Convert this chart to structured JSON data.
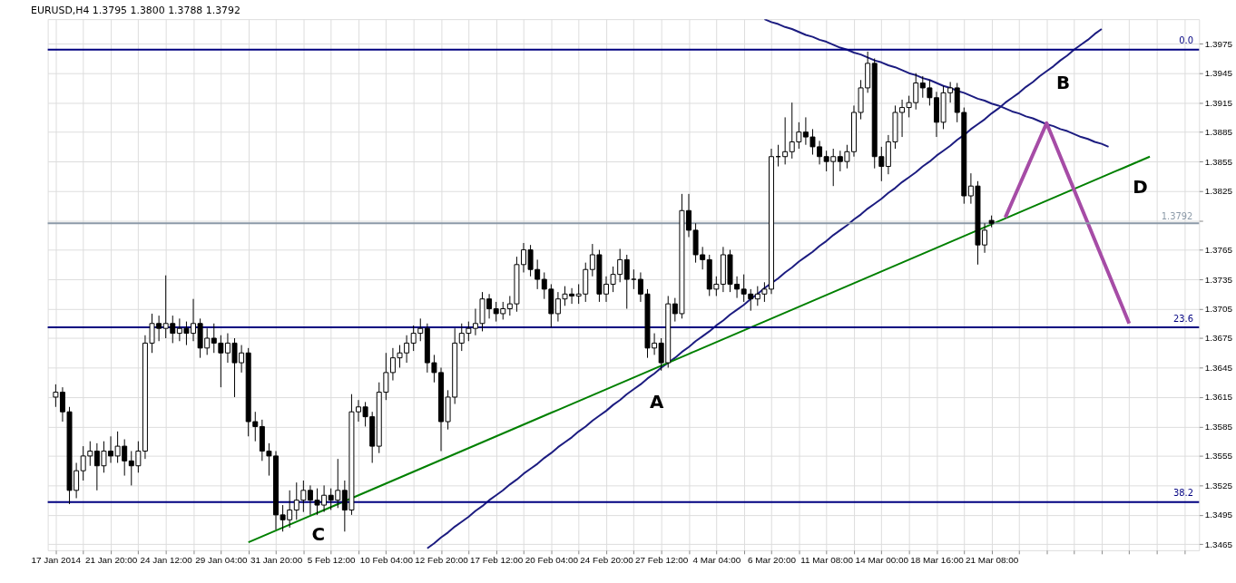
{
  "chart_data": {
    "type": "candlestick",
    "title": "EURUSD,H4  1.3795 1.3800 1.3788 1.3792",
    "categories": [
      "17 Jan 2014",
      null,
      null,
      null,
      null,
      null,
      null,
      null,
      "21 Jan 20:00",
      null,
      null,
      null,
      null,
      null,
      null,
      null,
      "24 Jan 12:00",
      null,
      null,
      null,
      null,
      null,
      null,
      null,
      "29 Jan 04:00",
      null,
      null,
      null,
      null,
      null,
      null,
      null,
      "31 Jan 20:00",
      null,
      null,
      null,
      null,
      null,
      null,
      null,
      "5 Feb 12:00",
      null,
      null,
      null,
      null,
      null,
      null,
      null,
      "10 Feb 04:00",
      null,
      null,
      null,
      null,
      null,
      null,
      null,
      "12 Feb 20:00",
      null,
      null,
      null,
      null,
      null,
      null,
      null,
      "17 Feb 12:00",
      null,
      null,
      null,
      null,
      null,
      null,
      null,
      "20 Feb 04:00",
      null,
      null,
      null,
      null,
      null,
      null,
      null,
      "24 Feb 20:00",
      null,
      null,
      null,
      null,
      null,
      null,
      null,
      "27 Feb 12:00",
      null,
      null,
      null,
      null,
      null,
      null,
      null,
      "4 Mar 04:00",
      null,
      null,
      null,
      null,
      null,
      null,
      null,
      "6 Mar 20:00",
      null,
      null,
      null,
      null,
      null,
      null,
      null,
      "11 Mar 08:00",
      null,
      null,
      null,
      null,
      null,
      null,
      null,
      "14 Mar 00:00",
      null,
      null,
      null,
      null,
      null,
      null,
      null,
      "18 Mar 16:00",
      null,
      null,
      null,
      null,
      null,
      null,
      null,
      "21 Mar 08:00",
      null,
      null,
      null,
      null,
      null,
      null,
      null,
      null,
      null,
      null,
      null,
      null,
      null,
      null,
      null,
      null,
      null,
      null,
      null,
      null,
      null,
      null,
      null,
      null,
      null,
      null,
      null,
      null,
      null
    ],
    "ylim": [
      1.3459,
      1.4
    ],
    "yticks": [
      1.3465,
      1.3495,
      1.3525,
      1.3555,
      1.3585,
      1.3615,
      1.3645,
      1.3675,
      1.3705,
      1.3735,
      1.3765,
      {
        "value": 1.3795,
        "label": null
      },
      1.3825,
      1.3855,
      1.3885,
      1.3915,
      1.3945,
      1.3975
    ],
    "grid": true,
    "series": [
      {
        "type": "line",
        "color": "#1c1c80",
        "values": [
          null,
          null,
          null,
          null,
          null,
          null,
          null,
          null,
          null,
          null,
          null,
          null,
          null,
          null,
          null,
          null,
          null,
          null,
          null,
          null,
          null,
          null,
          null,
          null,
          null,
          null,
          null,
          null,
          null,
          null,
          null,
          null,
          null,
          null,
          null,
          null,
          null,
          null,
          null,
          null,
          null,
          null,
          null,
          null,
          null,
          null,
          null,
          null,
          null,
          null,
          null,
          null,
          null,
          null,
          null,
          null,
          null,
          null,
          null,
          null,
          null,
          null,
          null,
          null,
          null,
          null,
          null,
          null,
          null,
          null,
          null,
          null,
          null,
          null,
          null,
          null,
          null,
          null,
          null,
          null,
          null,
          null,
          null,
          null,
          null,
          null,
          null,
          null,
          null,
          null,
          null,
          null,
          null,
          null,
          null,
          null,
          null,
          null,
          null,
          null,
          null,
          null,
          null,
          1.4,
          1.3997,
          1.3995,
          1.3992,
          1.399,
          1.3987,
          1.3984,
          1.3982,
          1.3979,
          1.3977,
          1.3974,
          1.3971,
          1.3969,
          1.3966,
          1.3964,
          1.3961,
          1.3958,
          1.3956,
          1.3953,
          1.3951,
          1.3948,
          1.3945,
          1.3943,
          1.394,
          1.3938,
          1.3935,
          1.3932,
          1.393,
          1.3927,
          1.3925,
          1.3922,
          1.3919,
          1.3917,
          1.3914,
          1.3912,
          1.3909,
          1.3906,
          1.3904,
          1.3901,
          1.3899,
          1.3896,
          1.3893,
          1.3891,
          1.3888,
          1.3886,
          1.3883,
          1.388,
          1.3878,
          1.3875,
          1.3873,
          1.387,
          null,
          null,
          null,
          null,
          null,
          null,
          null,
          null,
          null,
          null,
          null,
          null
        ]
      },
      {
        "type": "line",
        "color": "#1c1c80",
        "values": [
          null,
          null,
          null,
          null,
          null,
          null,
          null,
          null,
          null,
          null,
          null,
          null,
          null,
          null,
          null,
          null,
          null,
          null,
          null,
          null,
          null,
          null,
          null,
          null,
          null,
          null,
          null,
          null,
          null,
          null,
          null,
          null,
          null,
          null,
          null,
          null,
          null,
          null,
          null,
          null,
          null,
          null,
          null,
          null,
          null,
          null,
          null,
          null,
          null,
          null,
          null,
          null,
          null,
          null,
          1.3461,
          1.3466,
          1.3472,
          1.3477,
          1.3483,
          1.3488,
          1.3493,
          1.3499,
          1.3504,
          1.351,
          1.3515,
          1.352,
          1.3526,
          1.3531,
          1.3537,
          1.3542,
          1.3547,
          1.3553,
          1.3558,
          1.3564,
          1.3569,
          1.3574,
          1.358,
          1.3585,
          1.3591,
          1.3596,
          1.3601,
          1.3607,
          1.3612,
          1.3618,
          1.3623,
          1.3628,
          1.3634,
          1.3639,
          1.3645,
          1.365,
          1.3655,
          1.3661,
          1.3666,
          1.3672,
          1.3677,
          1.3682,
          1.3688,
          1.3693,
          1.3699,
          1.3704,
          1.3709,
          1.3715,
          1.372,
          1.3726,
          1.3731,
          1.3736,
          1.3742,
          1.3747,
          1.3753,
          1.3758,
          1.3763,
          1.3769,
          1.3774,
          1.378,
          1.3785,
          1.379,
          1.3796,
          1.3801,
          1.3807,
          1.3812,
          1.3817,
          1.3823,
          1.3828,
          1.3834,
          1.3839,
          1.3844,
          1.385,
          1.3855,
          1.3861,
          1.3866,
          1.3871,
          1.3877,
          1.3882,
          1.3888,
          1.3893,
          1.3898,
          1.3904,
          1.3909,
          1.3915,
          1.392,
          1.3925,
          1.3931,
          1.3936,
          1.3942,
          1.3947,
          1.3952,
          1.3958,
          1.3963,
          1.3969,
          1.3974,
          1.3979,
          1.3985,
          1.399,
          null,
          null,
          null,
          null,
          null,
          null,
          null,
          null,
          null,
          null,
          null,
          null,
          null
        ]
      },
      {
        "type": "line",
        "color": "#008000",
        "values": [
          null,
          null,
          null,
          null,
          null,
          null,
          null,
          null,
          null,
          null,
          null,
          null,
          null,
          null,
          null,
          null,
          null,
          null,
          null,
          null,
          null,
          null,
          null,
          null,
          null,
          null,
          null,
          null,
          1.3467,
          1.347,
          1.3473,
          1.3476,
          1.3479,
          1.3482,
          1.3485,
          1.3488,
          1.3491,
          1.3494,
          1.3497,
          1.35,
          1.3503,
          1.3506,
          1.3509,
          1.3512,
          1.3515,
          1.3518,
          1.3521,
          1.3524,
          1.3527,
          1.353,
          1.3533,
          1.3536,
          1.3539,
          1.3542,
          1.3545,
          1.3548,
          1.3551,
          1.3554,
          1.3557,
          1.356,
          1.3563,
          1.3566,
          1.3569,
          1.3572,
          1.3575,
          1.3578,
          1.3581,
          1.3584,
          1.3587,
          1.359,
          1.3593,
          1.3596,
          1.3599,
          1.3602,
          1.3605,
          1.3608,
          1.3611,
          1.3614,
          1.3617,
          1.362,
          1.3623,
          1.3626,
          1.3629,
          1.3632,
          1.3635,
          1.3638,
          1.3641,
          1.3644,
          1.3647,
          1.365,
          1.3653,
          1.3656,
          1.3659,
          1.3662,
          1.3665,
          1.3668,
          1.3671,
          1.3674,
          1.3677,
          1.368,
          1.3683,
          1.3686,
          1.3689,
          1.3692,
          1.3695,
          1.3698,
          1.3701,
          1.3704,
          1.3707,
          1.371,
          1.3713,
          1.3716,
          1.3719,
          1.3722,
          1.3725,
          1.3728,
          1.3731,
          1.3734,
          1.3737,
          1.374,
          1.3743,
          1.3746,
          1.3749,
          1.3752,
          1.3755,
          1.3758,
          1.3761,
          1.3764,
          1.3767,
          1.377,
          1.3773,
          1.3776,
          1.3779,
          1.3782,
          1.3785,
          1.3788,
          1.3791,
          1.3794,
          1.3797,
          1.38,
          1.3803,
          1.3806,
          1.3809,
          1.3812,
          1.3815,
          1.3818,
          1.3821,
          1.3824,
          1.3827,
          1.383,
          1.3833,
          1.3836,
          1.3839,
          1.3842,
          1.3845,
          1.3848,
          1.3851,
          1.3854,
          1.3857,
          1.386,
          null,
          null,
          null,
          null,
          null,
          null
        ]
      },
      {
        "type": "line",
        "color": "#a64ca6",
        "values": [
          null,
          null,
          null,
          null,
          null,
          null,
          null,
          null,
          null,
          null,
          null,
          null,
          null,
          null,
          null,
          null,
          null,
          null,
          null,
          null,
          null,
          null,
          null,
          null,
          null,
          null,
          null,
          null,
          null,
          null,
          null,
          null,
          null,
          null,
          null,
          null,
          null,
          null,
          null,
          null,
          null,
          null,
          null,
          null,
          null,
          null,
          null,
          null,
          null,
          null,
          null,
          null,
          null,
          null,
          null,
          null,
          null,
          null,
          null,
          null,
          null,
          null,
          null,
          null,
          null,
          null,
          null,
          null,
          null,
          null,
          null,
          null,
          null,
          null,
          null,
          null,
          null,
          null,
          null,
          null,
          null,
          null,
          null,
          null,
          null,
          null,
          null,
          null,
          null,
          null,
          null,
          null,
          null,
          null,
          null,
          null,
          null,
          null,
          null,
          null,
          null,
          null,
          null,
          null,
          null,
          null,
          null,
          null,
          null,
          null,
          null,
          null,
          null,
          null,
          null,
          null,
          null,
          null,
          null,
          null,
          null,
          null,
          null,
          null,
          null,
          null,
          null,
          null,
          null,
          null,
          null,
          null,
          null,
          null,
          null,
          null,
          null,
          null,
          1.3798,
          1.3814,
          1.383,
          1.3846,
          1.3862,
          1.3878,
          1.3894,
          1.3877,
          1.386,
          1.3843,
          1.3826,
          1.3809,
          1.3792,
          1.3775,
          1.3758,
          1.3741,
          1.3724,
          1.3707,
          1.369,
          null,
          null,
          null,
          null,
          null,
          null,
          null,
          null,
          null
        ]
      },
      {
        "color": "#000000",
        "ohlc": [
          [
            1.3615,
            1.3628,
            1.3605,
            1.362
          ],
          [
            1.362,
            1.3625,
            1.359,
            1.36
          ],
          [
            1.36,
            1.3605,
            1.3506,
            1.352
          ],
          [
            1.352,
            1.3548,
            1.3512,
            1.354
          ],
          [
            1.354,
            1.3565,
            1.353,
            1.3555
          ],
          [
            1.3555,
            1.357,
            1.3545,
            1.356
          ],
          [
            1.356,
            1.3568,
            1.352,
            1.3545
          ],
          [
            1.3545,
            1.357,
            1.3538,
            1.356
          ],
          [
            1.356,
            1.3575,
            1.3548,
            1.3555
          ],
          [
            1.3555,
            1.358,
            1.3548,
            1.3565
          ],
          [
            1.3565,
            1.3572,
            1.3535,
            1.355
          ],
          [
            1.355,
            1.356,
            1.3525,
            1.3545
          ],
          [
            1.3545,
            1.357,
            1.3538,
            1.356
          ],
          [
            1.356,
            1.3678,
            1.3552,
            1.367
          ],
          [
            1.367,
            1.37,
            1.366,
            1.369
          ],
          [
            1.369,
            1.3698,
            1.3672,
            1.3685
          ],
          [
            1.3685,
            1.3739,
            1.3675,
            1.369
          ],
          [
            1.369,
            1.3698,
            1.367,
            1.368
          ],
          [
            1.368,
            1.3695,
            1.3672,
            1.3685
          ],
          [
            1.3685,
            1.3692,
            1.3668,
            1.368
          ],
          [
            1.368,
            1.3715,
            1.3672,
            1.369
          ],
          [
            1.369,
            1.3695,
            1.3655,
            1.3665
          ],
          [
            1.3665,
            1.3685,
            1.3658,
            1.3675
          ],
          [
            1.3675,
            1.369,
            1.366,
            1.367
          ],
          [
            1.367,
            1.3678,
            1.3625,
            1.366
          ],
          [
            1.366,
            1.368,
            1.365,
            1.367
          ],
          [
            1.367,
            1.3675,
            1.3615,
            1.365
          ],
          [
            1.365,
            1.3668,
            1.364,
            1.366
          ],
          [
            1.366,
            1.3665,
            1.3575,
            1.359
          ],
          [
            1.359,
            1.36,
            1.357,
            1.3585
          ],
          [
            1.3585,
            1.3592,
            1.355,
            1.356
          ],
          [
            1.356,
            1.3568,
            1.3535,
            1.3555
          ],
          [
            1.3555,
            1.356,
            1.348,
            1.3495
          ],
          [
            1.3495,
            1.3505,
            1.3478,
            1.349
          ],
          [
            1.349,
            1.352,
            1.3482,
            1.35
          ],
          [
            1.35,
            1.3528,
            1.349,
            1.351
          ],
          [
            1.351,
            1.353,
            1.3498,
            1.352
          ],
          [
            1.352,
            1.3525,
            1.3495,
            1.351
          ],
          [
            1.351,
            1.3522,
            1.3495,
            1.3505
          ],
          [
            1.3505,
            1.3525,
            1.3498,
            1.3515
          ],
          [
            1.3515,
            1.3522,
            1.35,
            1.351
          ],
          [
            1.351,
            1.3552,
            1.3502,
            1.352
          ],
          [
            1.352,
            1.353,
            1.3478,
            1.35
          ],
          [
            1.35,
            1.3618,
            1.3495,
            1.36
          ],
          [
            1.36,
            1.3612,
            1.359,
            1.3605
          ],
          [
            1.3605,
            1.361,
            1.3585,
            1.3595
          ],
          [
            1.3595,
            1.36,
            1.3548,
            1.3565
          ],
          [
            1.3565,
            1.363,
            1.3558,
            1.362
          ],
          [
            1.362,
            1.366,
            1.3612,
            1.364
          ],
          [
            1.364,
            1.3665,
            1.3632,
            1.3655
          ],
          [
            1.3655,
            1.3668,
            1.3645,
            1.366
          ],
          [
            1.366,
            1.3678,
            1.365,
            1.367
          ],
          [
            1.367,
            1.3688,
            1.3662,
            1.368
          ],
          [
            1.368,
            1.3695,
            1.3672,
            1.3685
          ],
          [
            1.3685,
            1.369,
            1.364,
            1.365
          ],
          [
            1.365,
            1.3658,
            1.363,
            1.364
          ],
          [
            1.364,
            1.3645,
            1.356,
            1.359
          ],
          [
            1.359,
            1.3622,
            1.3582,
            1.3615
          ],
          [
            1.3615,
            1.3685,
            1.3608,
            1.367
          ],
          [
            1.367,
            1.369,
            1.3662,
            1.368
          ],
          [
            1.368,
            1.3692,
            1.3672,
            1.3685
          ],
          [
            1.3685,
            1.3705,
            1.3678,
            1.369
          ],
          [
            1.369,
            1.3722,
            1.3682,
            1.3715
          ],
          [
            1.3715,
            1.372,
            1.3695,
            1.3705
          ],
          [
            1.3705,
            1.3712,
            1.3692,
            1.37
          ],
          [
            1.37,
            1.3712,
            1.3694,
            1.3705
          ],
          [
            1.3705,
            1.3718,
            1.3698,
            1.371
          ],
          [
            1.371,
            1.3758,
            1.3702,
            1.375
          ],
          [
            1.375,
            1.3772,
            1.3742,
            1.3765
          ],
          [
            1.3765,
            1.377,
            1.3738,
            1.3745
          ],
          [
            1.3745,
            1.3755,
            1.3725,
            1.3735
          ],
          [
            1.3735,
            1.3742,
            1.3715,
            1.3725
          ],
          [
            1.3725,
            1.373,
            1.3686,
            1.37
          ],
          [
            1.37,
            1.3722,
            1.3692,
            1.3715
          ],
          [
            1.3715,
            1.3728,
            1.3708,
            1.372
          ],
          [
            1.372,
            1.3726,
            1.371,
            1.3718
          ],
          [
            1.3718,
            1.373,
            1.371,
            1.372
          ],
          [
            1.372,
            1.3752,
            1.3712,
            1.3745
          ],
          [
            1.3745,
            1.3771,
            1.3738,
            1.376
          ],
          [
            1.376,
            1.3765,
            1.3712,
            1.372
          ],
          [
            1.372,
            1.3738,
            1.3712,
            1.373
          ],
          [
            1.373,
            1.3748,
            1.3722,
            1.374
          ],
          [
            1.374,
            1.3766,
            1.3732,
            1.3755
          ],
          [
            1.3755,
            1.376,
            1.3705,
            1.3735
          ],
          [
            1.3735,
            1.3745,
            1.3725,
            1.3735
          ],
          [
            1.3735,
            1.3742,
            1.3712,
            1.372
          ],
          [
            1.372,
            1.3725,
            1.3655,
            1.3665
          ],
          [
            1.3665,
            1.368,
            1.3658,
            1.367
          ],
          [
            1.367,
            1.3675,
            1.3642,
            1.365
          ],
          [
            1.365,
            1.3718,
            1.3645,
            1.371
          ],
          [
            1.371,
            1.3716,
            1.3692,
            1.37
          ],
          [
            1.37,
            1.3822,
            1.3695,
            1.3805
          ],
          [
            1.3805,
            1.3822,
            1.3778,
            1.3785
          ],
          [
            1.3785,
            1.3792,
            1.3752,
            1.376
          ],
          [
            1.376,
            1.3768,
            1.3745,
            1.3755
          ],
          [
            1.3755,
            1.376,
            1.3718,
            1.3725
          ],
          [
            1.3725,
            1.3738,
            1.3718,
            1.373
          ],
          [
            1.373,
            1.3768,
            1.3722,
            1.376
          ],
          [
            1.376,
            1.3765,
            1.3722,
            1.373
          ],
          [
            1.373,
            1.3738,
            1.3716,
            1.3725
          ],
          [
            1.3725,
            1.374,
            1.3712,
            1.372
          ],
          [
            1.372,
            1.3725,
            1.3703,
            1.3715
          ],
          [
            1.3715,
            1.3728,
            1.3708,
            1.372
          ],
          [
            1.372,
            1.3732,
            1.3712,
            1.3725
          ],
          [
            1.3725,
            1.3868,
            1.372,
            1.386
          ],
          [
            1.386,
            1.3872,
            1.385,
            1.386
          ],
          [
            1.386,
            1.39,
            1.3852,
            1.3865
          ],
          [
            1.3865,
            1.3915,
            1.3858,
            1.3875
          ],
          [
            1.3875,
            1.3895,
            1.3868,
            1.3885
          ],
          [
            1.3885,
            1.39,
            1.3872,
            1.388
          ],
          [
            1.388,
            1.3888,
            1.3862,
            1.387
          ],
          [
            1.387,
            1.3876,
            1.3852,
            1.386
          ],
          [
            1.386,
            1.3866,
            1.3845,
            1.3855
          ],
          [
            1.3855,
            1.3868,
            1.383,
            1.386
          ],
          [
            1.386,
            1.3866,
            1.3845,
            1.3855
          ],
          [
            1.3855,
            1.3872,
            1.3848,
            1.3865
          ],
          [
            1.3865,
            1.3912,
            1.386,
            1.3905
          ],
          [
            1.3905,
            1.3938,
            1.3898,
            1.393
          ],
          [
            1.393,
            1.3967,
            1.3925,
            1.3955
          ],
          [
            1.3955,
            1.396,
            1.3848,
            1.386
          ],
          [
            1.386,
            1.387,
            1.3835,
            1.385
          ],
          [
            1.385,
            1.3882,
            1.3842,
            1.3875
          ],
          [
            1.3875,
            1.3912,
            1.3868,
            1.3905
          ],
          [
            1.3905,
            1.3918,
            1.388,
            1.391
          ],
          [
            1.391,
            1.3922,
            1.39,
            1.3915
          ],
          [
            1.3915,
            1.3945,
            1.3908,
            1.3935
          ],
          [
            1.3935,
            1.3942,
            1.392,
            1.393
          ],
          [
            1.393,
            1.3938,
            1.3912,
            1.392
          ],
          [
            1.392,
            1.3926,
            1.388,
            1.3895
          ],
          [
            1.3895,
            1.3932,
            1.3888,
            1.3925
          ],
          [
            1.3925,
            1.3936,
            1.3915,
            1.393
          ],
          [
            1.393,
            1.3935,
            1.3895,
            1.3905
          ],
          [
            1.3905,
            1.391,
            1.3812,
            1.382
          ],
          [
            1.382,
            1.3843,
            1.3812,
            1.383
          ],
          [
            1.383,
            1.3835,
            1.375,
            1.377
          ],
          [
            1.377,
            1.3792,
            1.3762,
            1.3785
          ],
          [
            1.3795,
            1.38,
            1.3788,
            1.3792
          ],
          null,
          null,
          null,
          null,
          null,
          null,
          null,
          null,
          null,
          null,
          null,
          null,
          null,
          null,
          null,
          null,
          null,
          null,
          null,
          null,
          null,
          null,
          null,
          null,
          null,
          null,
          null,
          null,
          null
        ]
      }
    ],
    "ref_lines": [
      {
        "axis": "y",
        "value": 1.3969,
        "color": "#000080"
      },
      {
        "axis": "y",
        "value": 1.3686,
        "color": "#000080"
      },
      {
        "axis": "y",
        "value": 1.3508,
        "color": "#000080"
      },
      {
        "axis": "y",
        "value": 1.3792,
        "label": "1.3792",
        "color": "#8c9aa8"
      }
    ],
    "annotations": [
      "A",
      "B",
      "C",
      "D",
      "0.0",
      "23.6",
      "38.2"
    ]
  }
}
